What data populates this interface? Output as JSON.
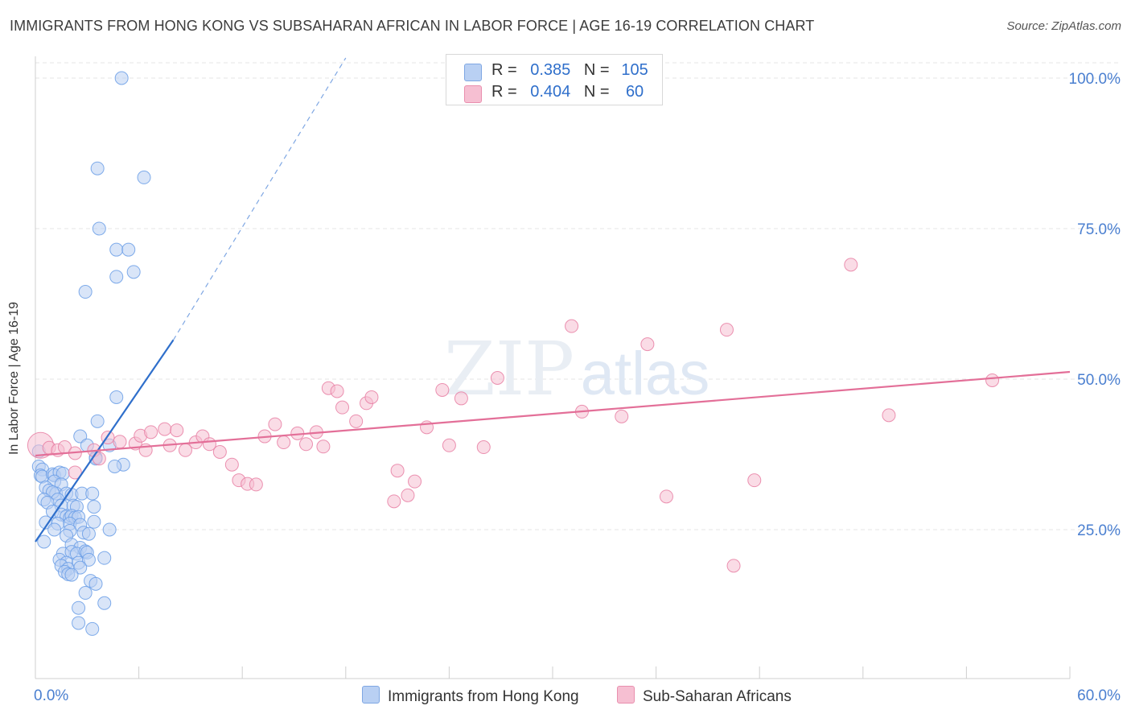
{
  "title": "IMMIGRANTS FROM HONG KONG VS SUBSAHARAN AFRICAN IN LABOR FORCE | AGE 16-19 CORRELATION CHART",
  "source": "Source: ZipAtlas.com",
  "watermark_zip": "ZIP",
  "watermark_atlas": "atlas",
  "legend_top": {
    "r_label": "R =",
    "n_label": "N =",
    "rows": [
      {
        "r": "0.385",
        "n": "105"
      },
      {
        "r": "0.404",
        "n": "60"
      }
    ]
  },
  "chart_data": {
    "type": "scatter",
    "title": "IMMIGRANTS FROM HONG KONG VS SUBSAHARAN AFRICAN IN LABOR FORCE | AGE 16-19 CORRELATION CHART",
    "xlabel": "",
    "ylabel": "In Labor Force | Age 16-19",
    "xlim": [
      0,
      60
    ],
    "ylim": [
      0,
      102
    ],
    "x_tick_labels": [
      "0.0%",
      "60.0%"
    ],
    "y_ticks": [
      25,
      50,
      75,
      100
    ],
    "y_tick_labels": [
      "25.0%",
      "50.0%",
      "75.0%",
      "100.0%"
    ],
    "grid": true,
    "legend_position": "bottom",
    "series": [
      {
        "name": "Immigrants from Hong Kong",
        "color": "#6a9ee6",
        "fill": "#b9d0f3",
        "r": 0.385,
        "n": 105,
        "trend": {
          "x": [
            0,
            8.0
          ],
          "y": [
            23.0,
            56.5
          ],
          "dashed_to": [
            18.0,
            100.0
          ]
        },
        "points": [
          [
            5.0,
            100
          ],
          [
            3.6,
            85
          ],
          [
            6.3,
            83.5
          ],
          [
            3.7,
            75
          ],
          [
            4.7,
            71.5
          ],
          [
            5.4,
            71.5
          ],
          [
            5.7,
            67.8
          ],
          [
            4.7,
            67
          ],
          [
            2.9,
            64.5
          ],
          [
            4.7,
            47
          ],
          [
            3.6,
            43
          ],
          [
            2.6,
            40.5
          ],
          [
            3.0,
            39
          ],
          [
            4.3,
            39
          ],
          [
            3.5,
            37
          ],
          [
            3.5,
            36.8
          ],
          [
            5.1,
            35.8
          ],
          [
            4.6,
            35.5
          ],
          [
            0.2,
            38
          ],
          [
            0.2,
            35.5
          ],
          [
            0.4,
            35
          ],
          [
            0.3,
            34
          ],
          [
            0.4,
            33.8
          ],
          [
            1.0,
            34.2
          ],
          [
            1.1,
            34
          ],
          [
            1.4,
            34.5
          ],
          [
            1.6,
            34.3
          ],
          [
            1.1,
            33
          ],
          [
            1.5,
            32.5
          ],
          [
            0.6,
            32
          ],
          [
            0.8,
            31.5
          ],
          [
            1.2,
            31
          ],
          [
            1.0,
            31.2
          ],
          [
            1.8,
            31
          ],
          [
            0.5,
            30
          ],
          [
            1.3,
            30
          ],
          [
            2.1,
            30.8
          ],
          [
            2.7,
            31
          ],
          [
            3.3,
            31
          ],
          [
            0.7,
            29.5
          ],
          [
            1.5,
            29
          ],
          [
            2.2,
            29
          ],
          [
            2.4,
            28.8
          ],
          [
            3.4,
            28.8
          ],
          [
            1.0,
            28
          ],
          [
            1.5,
            27.5
          ],
          [
            1.8,
            27.2
          ],
          [
            2.0,
            27
          ],
          [
            2.1,
            27.3
          ],
          [
            2.3,
            27
          ],
          [
            2.5,
            27.1
          ],
          [
            0.6,
            26.2
          ],
          [
            1.3,
            26
          ],
          [
            2.0,
            26
          ],
          [
            2.6,
            25.8
          ],
          [
            3.4,
            26.3
          ],
          [
            1.1,
            25
          ],
          [
            2.0,
            24.8
          ],
          [
            2.8,
            24.5
          ],
          [
            3.1,
            24.3
          ],
          [
            4.3,
            25
          ],
          [
            1.8,
            24
          ],
          [
            0.5,
            23
          ],
          [
            2.1,
            22.5
          ],
          [
            2.6,
            22
          ],
          [
            1.6,
            21
          ],
          [
            2.1,
            21.3
          ],
          [
            2.4,
            21
          ],
          [
            2.9,
            21.4
          ],
          [
            3.0,
            21.2
          ],
          [
            1.4,
            20
          ],
          [
            1.8,
            19.5
          ],
          [
            2.5,
            19.5
          ],
          [
            3.1,
            20
          ],
          [
            4.0,
            20.3
          ],
          [
            1.5,
            19
          ],
          [
            1.9,
            18.5
          ],
          [
            2.6,
            18.7
          ],
          [
            1.7,
            18
          ],
          [
            1.9,
            17.6
          ],
          [
            2.1,
            17.5
          ],
          [
            3.2,
            16.5
          ],
          [
            3.5,
            16
          ],
          [
            2.9,
            14.5
          ],
          [
            2.5,
            12
          ],
          [
            4.0,
            12.8
          ],
          [
            2.5,
            9.5
          ],
          [
            3.3,
            8.5
          ]
        ]
      },
      {
        "name": "Sub-Saharan Africans",
        "color": "#e87fa3",
        "fill": "#f6bfd2",
        "r": 0.404,
        "n": 60,
        "trend": {
          "x": [
            0,
            60
          ],
          "y": [
            37.3,
            51.2
          ]
        },
        "points": [
          [
            0.3,
            39
          ],
          [
            0.8,
            38.6
          ],
          [
            1.3,
            38.2
          ],
          [
            1.7,
            38.7
          ],
          [
            2.3,
            37.7
          ],
          [
            3.4,
            38.2
          ],
          [
            3.7,
            36.8
          ],
          [
            2.3,
            34.5
          ],
          [
            4.2,
            40.3
          ],
          [
            4.9,
            39.6
          ],
          [
            5.8,
            39.3
          ],
          [
            6.1,
            40.6
          ],
          [
            6.4,
            38.2
          ],
          [
            6.7,
            41.2
          ],
          [
            7.5,
            41.7
          ],
          [
            7.8,
            39
          ],
          [
            8.2,
            41.5
          ],
          [
            8.7,
            38.2
          ],
          [
            9.3,
            39.5
          ],
          [
            9.7,
            40.5
          ],
          [
            10.1,
            39.2
          ],
          [
            10.7,
            37.9
          ],
          [
            11.4,
            35.8
          ],
          [
            11.8,
            33.2
          ],
          [
            12.3,
            32.6
          ],
          [
            12.8,
            32.5
          ],
          [
            13.3,
            40.5
          ],
          [
            13.9,
            42.5
          ],
          [
            14.4,
            39.5
          ],
          [
            15.2,
            41
          ],
          [
            15.7,
            39.2
          ],
          [
            16.3,
            41.2
          ],
          [
            16.7,
            38.8
          ],
          [
            17.0,
            48.5
          ],
          [
            17.5,
            48
          ],
          [
            17.8,
            45.3
          ],
          [
            18.6,
            43
          ],
          [
            19.2,
            46
          ],
          [
            19.5,
            47
          ],
          [
            20.8,
            29.7
          ],
          [
            21.0,
            34.8
          ],
          [
            21.6,
            30.7
          ],
          [
            22.0,
            33
          ],
          [
            22.7,
            42
          ],
          [
            23.6,
            48.2
          ],
          [
            24.7,
            46.8
          ],
          [
            24.0,
            39
          ],
          [
            26.0,
            38.7
          ],
          [
            26.8,
            50.2
          ],
          [
            31.1,
            58.8
          ],
          [
            31.7,
            44.6
          ],
          [
            34.0,
            43.8
          ],
          [
            35.5,
            55.8
          ],
          [
            36.6,
            30.5
          ],
          [
            40.1,
            58.2
          ],
          [
            40.5,
            19
          ],
          [
            41.7,
            33.2
          ],
          [
            47.3,
            69
          ],
          [
            49.5,
            44
          ],
          [
            55.5,
            49.8
          ]
        ]
      }
    ]
  }
}
